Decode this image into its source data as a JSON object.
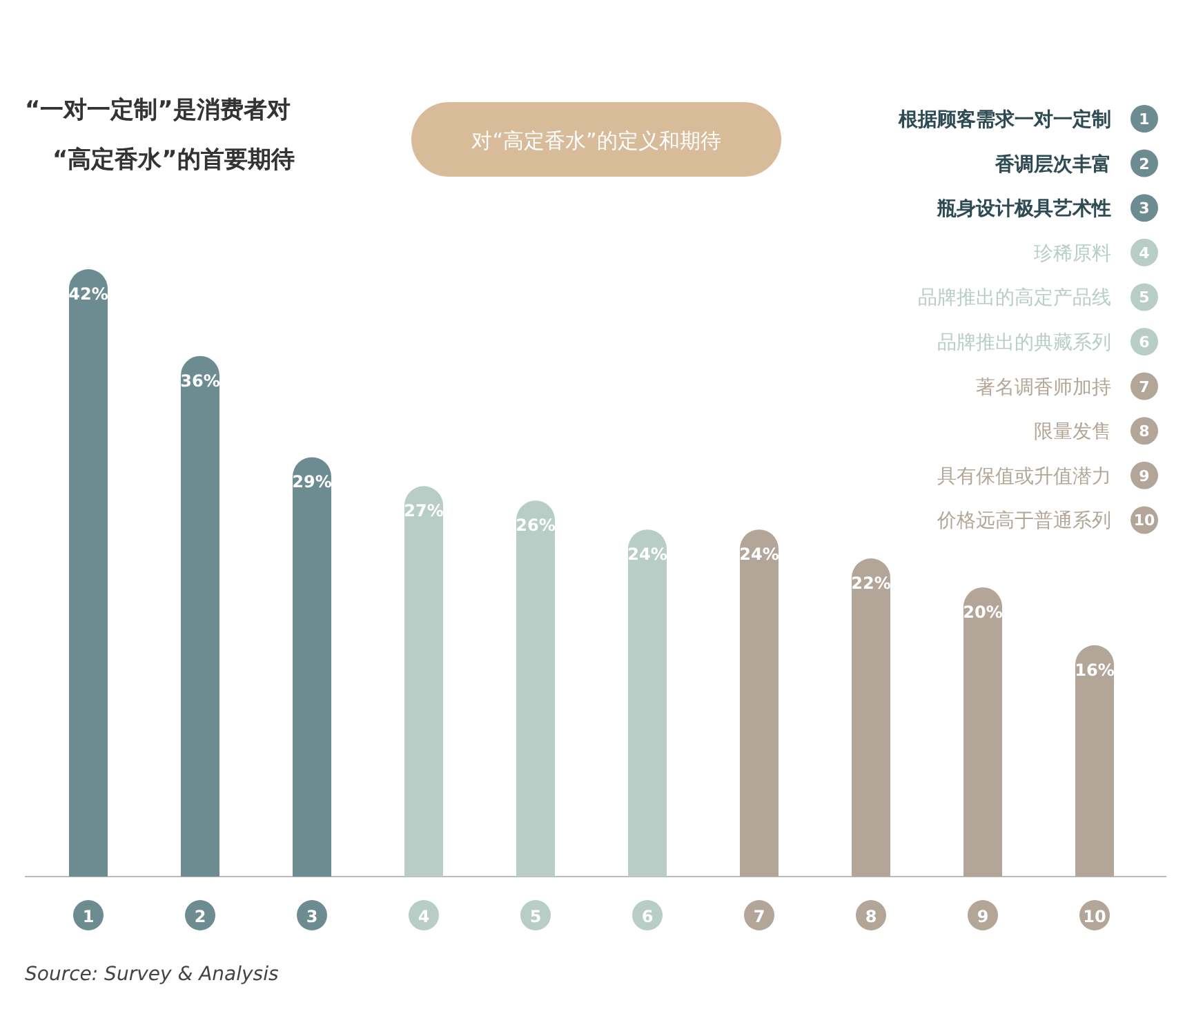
{
  "chart_data": {
    "type": "bar",
    "title": "“一对一定制”是消费者对“高定香水”的首要期待",
    "subtitle": "对“高定香水”的定义和期待",
    "categories": [
      "1",
      "2",
      "3",
      "4",
      "5",
      "6",
      "7",
      "8",
      "9",
      "10"
    ],
    "values": [
      42,
      36,
      29,
      27,
      26,
      24,
      24,
      22,
      20,
      16
    ],
    "colors": [
      "#6d8c91",
      "#6d8c91",
      "#6d8c91",
      "#b7cdc5",
      "#b7cdc5",
      "#b7cdc5",
      "#b3a598",
      "#b3a598",
      "#b3a598",
      "#b3a598"
    ],
    "value_labels": [
      "42%",
      "36%",
      "29%",
      "27%",
      "26%",
      "24%",
      "24%",
      "22%",
      "20%",
      "16%"
    ],
    "annotations": [
      "根据顾客需求一对一定制",
      "香调层次丰富",
      "瓶身设计极具艺术性",
      "珍稀原料",
      "品牌推出的高定产品线",
      "品牌推出的典藏系列",
      "著名调香师加持",
      "限量发售",
      "具有保值或升值潜力",
      "价格远高于普通系列",
      "Source: Survey & Analysis"
    ]
  }
}
